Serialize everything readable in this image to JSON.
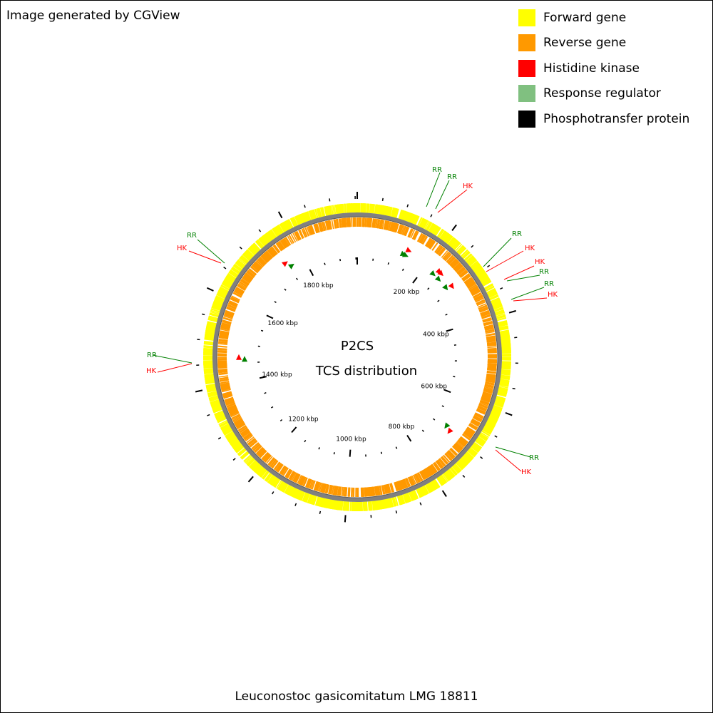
{
  "credit": "Image generated by CGView",
  "caption": "Leuconostoc gasicomitatum LMG 18811",
  "center": {
    "line1": "P2CS",
    "line2": "TCS distribution"
  },
  "legend": [
    {
      "label": "Forward gene",
      "color": "#ffff00"
    },
    {
      "label": "Reverse gene",
      "color": "#ff9900"
    },
    {
      "label": "Histidine kinase",
      "color": "#ff0000"
    },
    {
      "label": "Response regulator",
      "color": "#80c080"
    },
    {
      "label": "Phosphotransfer protein",
      "color": "#000000"
    }
  ],
  "colors": {
    "forward": "#ffff00",
    "reverse": "#ff9900",
    "backbone": "#808080",
    "hk": "#ff0000",
    "rr": "#008000",
    "tick": "#000000"
  },
  "genome": {
    "length_kbp": 1954,
    "tick_labels": [
      "200 kbp",
      "400 kbp",
      "600 kbp",
      "800 kbp",
      "1000 kbp",
      "1200 kbp",
      "1400 kbp",
      "1600 kbp",
      "1800 kbp"
    ]
  },
  "tcs_features": [
    {
      "type": "RR",
      "kbp": 132
    },
    {
      "type": "RR",
      "kbp": 139
    },
    {
      "type": "HK",
      "kbp": 141
    },
    {
      "type": "RR",
      "kbp": 231
    },
    {
      "type": "HK",
      "kbp": 239
    },
    {
      "type": "HK",
      "kbp": 246
    },
    {
      "type": "RR",
      "kbp": 252
    },
    {
      "type": "RR",
      "kbp": 283
    },
    {
      "type": "HK",
      "kbp": 290
    },
    {
      "type": "RR",
      "kbp": 694
    },
    {
      "type": "HK",
      "kbp": 700
    },
    {
      "type": "RR",
      "kbp": 1461
    },
    {
      "type": "HK",
      "kbp": 1466
    },
    {
      "type": "HK",
      "kbp": 1752
    },
    {
      "type": "RR",
      "kbp": 1762
    }
  ],
  "callouts": [
    {
      "label": "RR",
      "kind": "rr"
    },
    {
      "label": "RR",
      "kind": "rr"
    },
    {
      "label": "HK",
      "kind": "hk"
    },
    {
      "label": "RR",
      "kind": "rr"
    },
    {
      "label": "HK",
      "kind": "hk"
    },
    {
      "label": "HK",
      "kind": "hk"
    },
    {
      "label": "RR",
      "kind": "rr"
    },
    {
      "label": "RR",
      "kind": "rr"
    },
    {
      "label": "HK",
      "kind": "hk"
    },
    {
      "label": "RR",
      "kind": "rr"
    },
    {
      "label": "HK",
      "kind": "hk"
    },
    {
      "label": "RR",
      "kind": "rr"
    },
    {
      "label": "HK",
      "kind": "hk"
    },
    {
      "label": "RR",
      "kind": "rr"
    },
    {
      "label": "HK",
      "kind": "hk"
    }
  ]
}
